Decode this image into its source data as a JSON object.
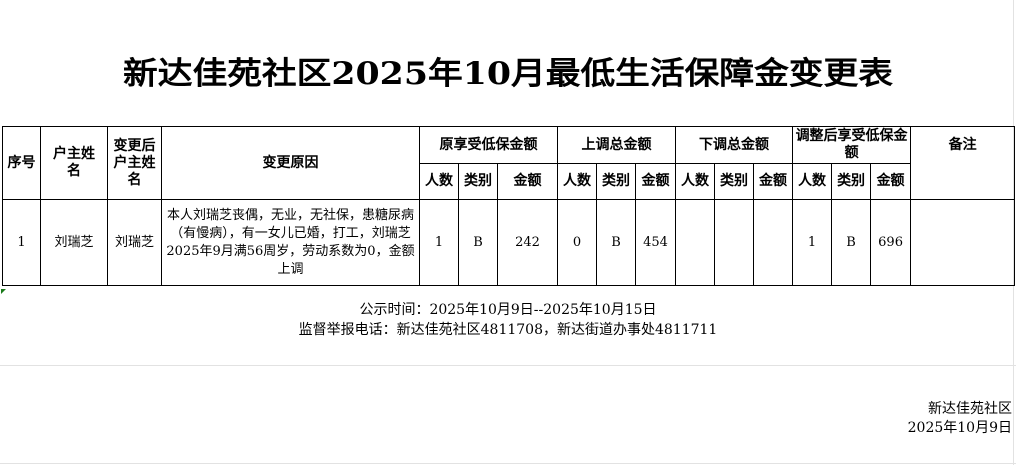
{
  "title": "新达佳苑社区2025年10月最低生活保障金变更表",
  "table": {
    "headers": {
      "seq": "序号",
      "household_head": "户主姓名",
      "new_household_head": "变更后户主姓名",
      "reason": "变更原因",
      "original": "原享受低保金额",
      "increase": "上调总金额",
      "decrease": "下调总金额",
      "adjusted": "调整后享受低保金额",
      "remarks": "备注",
      "people": "人数",
      "category": "类别",
      "amount": "金额"
    },
    "rows": [
      {
        "seq": "1",
        "household_head": "刘瑞芝",
        "new_household_head": "刘瑞芝",
        "reason": "本人刘瑞芝丧偶，无业，无社保，患糖尿病（有慢病），有一女儿已婚，打工，刘瑞芝2025年9月满56周岁，劳动系数为0，金额上调",
        "original": {
          "people": "1",
          "category": "B",
          "amount": "242"
        },
        "increase": {
          "people": "0",
          "category": "B",
          "amount": "454"
        },
        "decrease": {
          "people": "",
          "category": "",
          "amount": ""
        },
        "adjusted": {
          "people": "1",
          "category": "B",
          "amount": "696"
        },
        "remarks": ""
      }
    ]
  },
  "notice": {
    "period": "公示时间：2025年10月9日--2025年10月15日",
    "hotline": "监督举报电话：新达佳苑社区4811708，新达街道办事处4811711"
  },
  "signature": {
    "org": "新达佳苑社区",
    "date": "2025年10月9日"
  }
}
